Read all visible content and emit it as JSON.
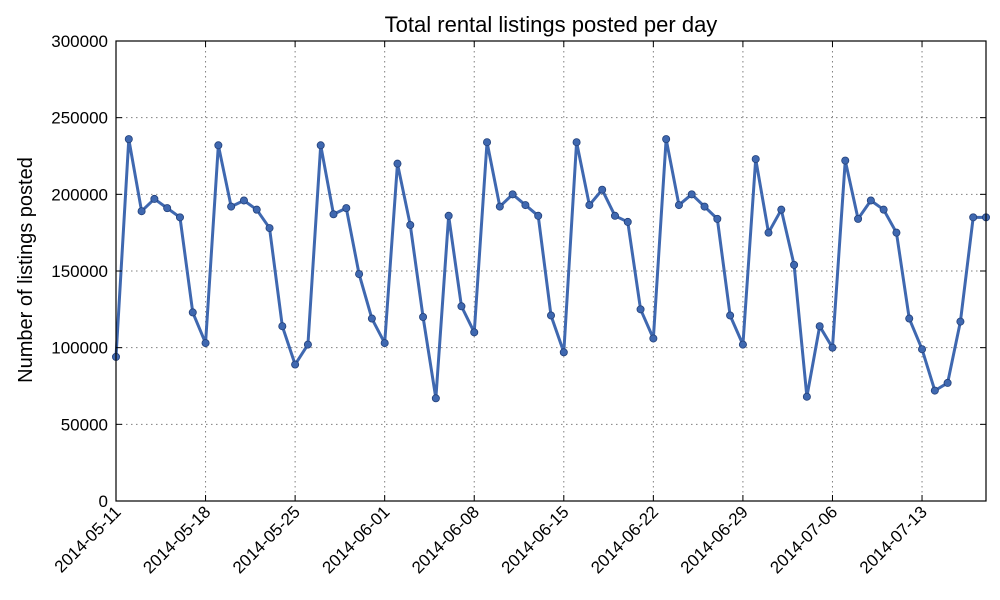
{
  "chart_data": {
    "type": "line",
    "title": "Total rental listings posted per day",
    "xlabel": "",
    "ylabel": "Number of listings posted",
    "ylim": [
      0,
      300000
    ],
    "xlim": [
      "2014-05-11",
      "2014-07-18"
    ],
    "grid": true,
    "yticks": [
      0,
      50000,
      100000,
      150000,
      200000,
      250000,
      300000
    ],
    "ytick_labels": [
      "0",
      "50000",
      "100000",
      "150000",
      "200000",
      "250000",
      "300000"
    ],
    "xticks": [
      "2014-05-11",
      "2014-05-18",
      "2014-05-25",
      "2014-06-01",
      "2014-06-08",
      "2014-06-15",
      "2014-06-22",
      "2014-06-29",
      "2014-07-06",
      "2014-07-13"
    ],
    "xtick_labels": [
      "2014-05-11",
      "2014-05-18",
      "2014-05-25",
      "2014-06-01",
      "2014-06-08",
      "2014-06-15",
      "2014-06-22",
      "2014-06-29",
      "2014-07-06",
      "2014-07-13"
    ],
    "series": [
      {
        "color": "#3f68b0",
        "x": [
          "2014-05-11",
          "2014-05-12",
          "2014-05-13",
          "2014-05-14",
          "2014-05-15",
          "2014-05-16",
          "2014-05-17",
          "2014-05-18",
          "2014-05-19",
          "2014-05-20",
          "2014-05-21",
          "2014-05-22",
          "2014-05-23",
          "2014-05-24",
          "2014-05-25",
          "2014-05-26",
          "2014-05-27",
          "2014-05-28",
          "2014-05-29",
          "2014-05-30",
          "2014-05-31",
          "2014-06-01",
          "2014-06-02",
          "2014-06-03",
          "2014-06-04",
          "2014-06-05",
          "2014-06-06",
          "2014-06-07",
          "2014-06-08",
          "2014-06-09",
          "2014-06-10",
          "2014-06-11",
          "2014-06-12",
          "2014-06-13",
          "2014-06-14",
          "2014-06-15",
          "2014-06-16",
          "2014-06-17",
          "2014-06-18",
          "2014-06-19",
          "2014-06-20",
          "2014-06-21",
          "2014-06-22",
          "2014-06-23",
          "2014-06-24",
          "2014-06-25",
          "2014-06-26",
          "2014-06-27",
          "2014-06-28",
          "2014-06-29",
          "2014-06-30",
          "2014-07-01",
          "2014-07-02",
          "2014-07-03",
          "2014-07-04",
          "2014-07-05",
          "2014-07-06",
          "2014-07-07",
          "2014-07-08",
          "2014-07-09",
          "2014-07-10",
          "2014-07-11",
          "2014-07-12",
          "2014-07-13",
          "2014-07-14",
          "2014-07-15",
          "2014-07-16",
          "2014-07-17",
          "2014-07-18"
        ],
        "values": [
          94000,
          236000,
          189000,
          197000,
          191000,
          185000,
          123000,
          103000,
          232000,
          192000,
          196000,
          190000,
          178000,
          114000,
          89000,
          102000,
          232000,
          187000,
          191000,
          148000,
          119000,
          103000,
          220000,
          180000,
          120000,
          67000,
          186000,
          127000,
          110000,
          234000,
          192000,
          200000,
          193000,
          186000,
          121000,
          97000,
          234000,
          193000,
          203000,
          186000,
          182000,
          125000,
          106000,
          236000,
          193000,
          200000,
          192000,
          184000,
          121000,
          102000,
          223000,
          175000,
          190000,
          154000,
          68000,
          114000,
          100000,
          222000,
          184000,
          196000,
          190000,
          175000,
          119000,
          99000,
          72000,
          77000,
          117000,
          185000,
          185000
        ]
      }
    ]
  }
}
